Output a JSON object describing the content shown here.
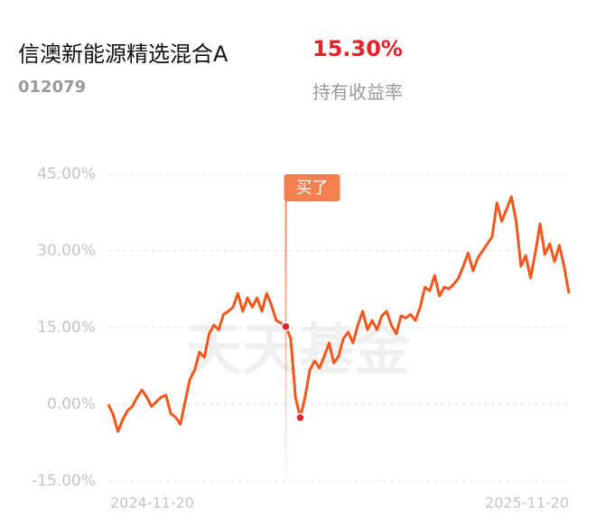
{
  "header": {
    "fund_name": "信澳新能源精选混合A",
    "fund_code": "012079",
    "return": {
      "value": 15.3,
      "label": "15.30%"
    },
    "return_label": "持有收益率"
  },
  "chart_data": {
    "type": "line",
    "watermark": "天天基金",
    "categories": [
      "2024-11-20",
      null,
      null,
      null,
      null,
      null,
      null,
      null,
      null,
      null,
      null,
      null,
      null,
      null,
      null,
      null,
      null,
      null,
      null,
      null,
      null,
      null,
      null,
      null,
      null,
      null,
      null,
      null,
      null,
      null,
      null,
      null,
      null,
      null,
      null,
      null,
      null,
      null,
      null,
      null,
      null,
      null,
      null,
      null,
      null,
      null,
      null,
      null,
      null,
      null,
      null,
      null,
      null,
      null,
      null,
      null,
      null,
      null,
      null,
      null,
      null,
      null,
      null,
      null,
      null,
      null,
      null,
      null,
      null,
      null,
      null,
      null,
      null,
      null,
      null,
      null,
      null,
      null,
      null,
      null,
      null,
      null,
      null,
      null,
      null,
      null,
      null,
      null,
      null,
      null,
      null,
      null,
      null,
      null,
      null,
      null,
      "2025-11-20"
    ],
    "series": [
      {
        "color": "#f5561c",
        "values": [
          0,
          -2,
          -5.3,
          -3,
          -1.2,
          -0.4,
          1.4,
          2.8,
          1.4,
          -0.4,
          0.5,
          1.4,
          1.8,
          -1.8,
          -2.5,
          -3.9,
          0.5,
          4.9,
          6.7,
          10.2,
          9.2,
          13.8,
          15.5,
          14.6,
          17.6,
          18.2,
          19,
          21.7,
          18.2,
          20.8,
          19,
          20.8,
          18.2,
          21.7,
          19.4,
          16.4,
          15.9,
          15.2,
          12.9,
          1.4,
          -2.6,
          1.4,
          6.7,
          8.5,
          7.1,
          9.4,
          12,
          8.1,
          9.4,
          12.9,
          14.1,
          12,
          15.5,
          18.2,
          14.6,
          16.4,
          14.6,
          17.3,
          18.2,
          15.5,
          13.8,
          17.3,
          16.9,
          17.6,
          16.4,
          19,
          22.9,
          22.2,
          25.2,
          21.2,
          22.9,
          22.6,
          23.5,
          24.7,
          27,
          29.6,
          26.1,
          28.6,
          30,
          31.4,
          32.8,
          39.4,
          35.8,
          38.1,
          40.6,
          35.8,
          27,
          29.1,
          24.7,
          29.6,
          35.3,
          29.3,
          31.4,
          27.9,
          31.1,
          27,
          21.7
        ]
      }
    ],
    "annotations": [
      {
        "text": "买了",
        "index": 37
      },
      {
        "index": 40
      }
    ],
    "ylim": [
      -15,
      45
    ],
    "yticks": [
      {
        "value": -15,
        "label": "-15.00%"
      },
      {
        "value": 0,
        "label": "0.00%"
      },
      {
        "value": 15,
        "label": "15.00%"
      },
      {
        "value": 30,
        "label": "30.00%"
      },
      {
        "value": 45,
        "label": "45.00%"
      }
    ],
    "grid": true
  }
}
